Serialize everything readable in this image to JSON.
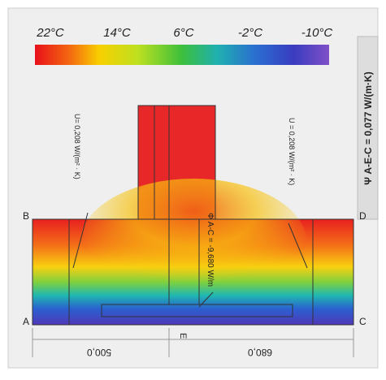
{
  "scale": {
    "labels": [
      "22°C",
      "14°C",
      "6°C",
      "-2°C",
      "-10°C"
    ]
  },
  "points": [
    "A",
    "B",
    "C",
    "D",
    "E"
  ],
  "dimensions": [
    "500,0",
    "680,0"
  ],
  "annotations": {
    "u_left": "U= 0,208 W/(m² · K)",
    "u_right": "U = 0,208 W/(m² · K)",
    "phi": "Φ A-C = -9,680 W/m"
  },
  "psi": "Ψ A-E-C = 0,077 W/(m·K)"
}
